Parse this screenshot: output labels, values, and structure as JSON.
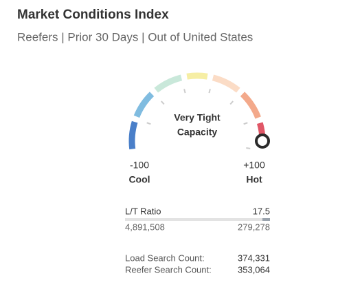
{
  "header": {
    "title": "Market Conditions Index",
    "subtitle": "Reefers | Prior 30 Days | Out of United States"
  },
  "gauge": {
    "min": {
      "value": -100,
      "label": "-100"
    },
    "max": {
      "value": 100,
      "label": "+100"
    },
    "value": 100,
    "min_name": "Cool",
    "max_name": "Hot",
    "status": [
      "Very Tight",
      "Capacity"
    ]
  },
  "ratio": {
    "label": "L/T Ratio",
    "value": "17.5",
    "loads": "4,891,508",
    "trucks": "279,278"
  },
  "counts": [
    {
      "label": "Load Search Count:",
      "value": "374,331"
    },
    {
      "label": "Reefer Search Count:",
      "value": "353,064"
    }
  ]
}
